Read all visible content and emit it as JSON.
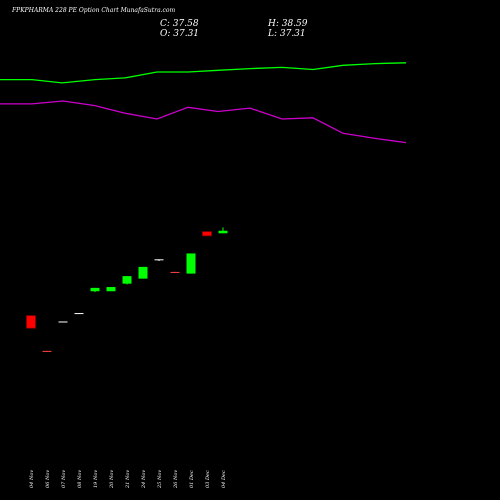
{
  "chart_data": {
    "type": "candlestick",
    "title": "FPKPHARMA 228  PE Option  Chart MunafaSutra.com",
    "ohlc_readout": {
      "close": "C: 37.58",
      "open": "O: 37.31",
      "high": "H: 38.59",
      "low": "L: 37.31"
    },
    "categories": [
      "04 Nov",
      "06 Nov",
      "07 Nov",
      "08 Nov",
      "19 Nov",
      "20 Nov",
      "21 Nov",
      "24 Nov",
      "25 Nov",
      "26 Nov",
      "01 Dec",
      "03 Dec",
      "04 Dec"
    ],
    "ylim": [
      0,
      100
    ],
    "candles": [
      {
        "x": "04 Nov",
        "open": 32.0,
        "high": 32.0,
        "low": 29.0,
        "close": 29.0
      },
      {
        "x": "06 Nov",
        "open": 23.6,
        "high": 23.6,
        "low": 23.4,
        "close": 23.4
      },
      {
        "x": "07 Nov",
        "open": 30.6,
        "high": 30.6,
        "low": 30.4,
        "close": 30.6
      },
      {
        "x": "08 Nov",
        "open": 32.6,
        "high": 32.6,
        "low": 32.4,
        "close": 32.6
      },
      {
        "x": "19 Nov",
        "open": 37.8,
        "high": 38.6,
        "low": 37.6,
        "close": 38.6
      },
      {
        "x": "20 Nov",
        "open": 37.8,
        "high": 38.8,
        "low": 37.8,
        "close": 38.8
      },
      {
        "x": "21 Nov",
        "open": 39.6,
        "high": 41.4,
        "low": 39.4,
        "close": 41.4
      },
      {
        "x": "24 Nov",
        "open": 40.8,
        "high": 43.6,
        "low": 40.8,
        "close": 43.6
      },
      {
        "x": "25 Nov",
        "open": 45.2,
        "high": 45.4,
        "low": 45.0,
        "close": 45.4
      },
      {
        "x": "26 Nov",
        "open": 42.4,
        "high": 42.4,
        "low": 42.2,
        "close": 42.2
      },
      {
        "x": "01 Dec",
        "open": 42.0,
        "high": 46.8,
        "low": 42.0,
        "close": 46.8
      },
      {
        "x": "03 Dec",
        "open": 52.0,
        "high": 52.0,
        "low": 51.0,
        "close": 51.0
      },
      {
        "x": "04 Dec",
        "open": 51.6,
        "high": 53.0,
        "low": 51.6,
        "close": 52.2
      }
    ],
    "series": [
      {
        "color": "#00ff00",
        "x": [
          0,
          32,
          62,
          95,
          125,
          157,
          188,
          218,
          250,
          282,
          313,
          343,
          375,
          406
        ],
        "values": [
          88.2,
          88.2,
          87.4,
          88.2,
          88.6,
          90.0,
          90.0,
          90.4,
          90.8,
          91.1,
          90.6,
          91.6,
          92.0,
          92.2
        ]
      },
      {
        "color": "#cc00cc",
        "x": [
          0,
          32,
          63,
          95,
          125,
          157,
          188,
          218,
          250,
          282,
          313,
          343,
          375,
          406
        ],
        "values": [
          82.4,
          82.4,
          83.1,
          82.0,
          80.2,
          78.8,
          81.6,
          80.6,
          81.4,
          78.8,
          79.1,
          75.4,
          74.2,
          73.2
        ]
      }
    ],
    "colors": {
      "up": "#00ff00",
      "down": "#ff0000",
      "doji_up": "#ffffff",
      "doji_down": "#ff4444",
      "background": "#000000"
    },
    "grid": false
  }
}
